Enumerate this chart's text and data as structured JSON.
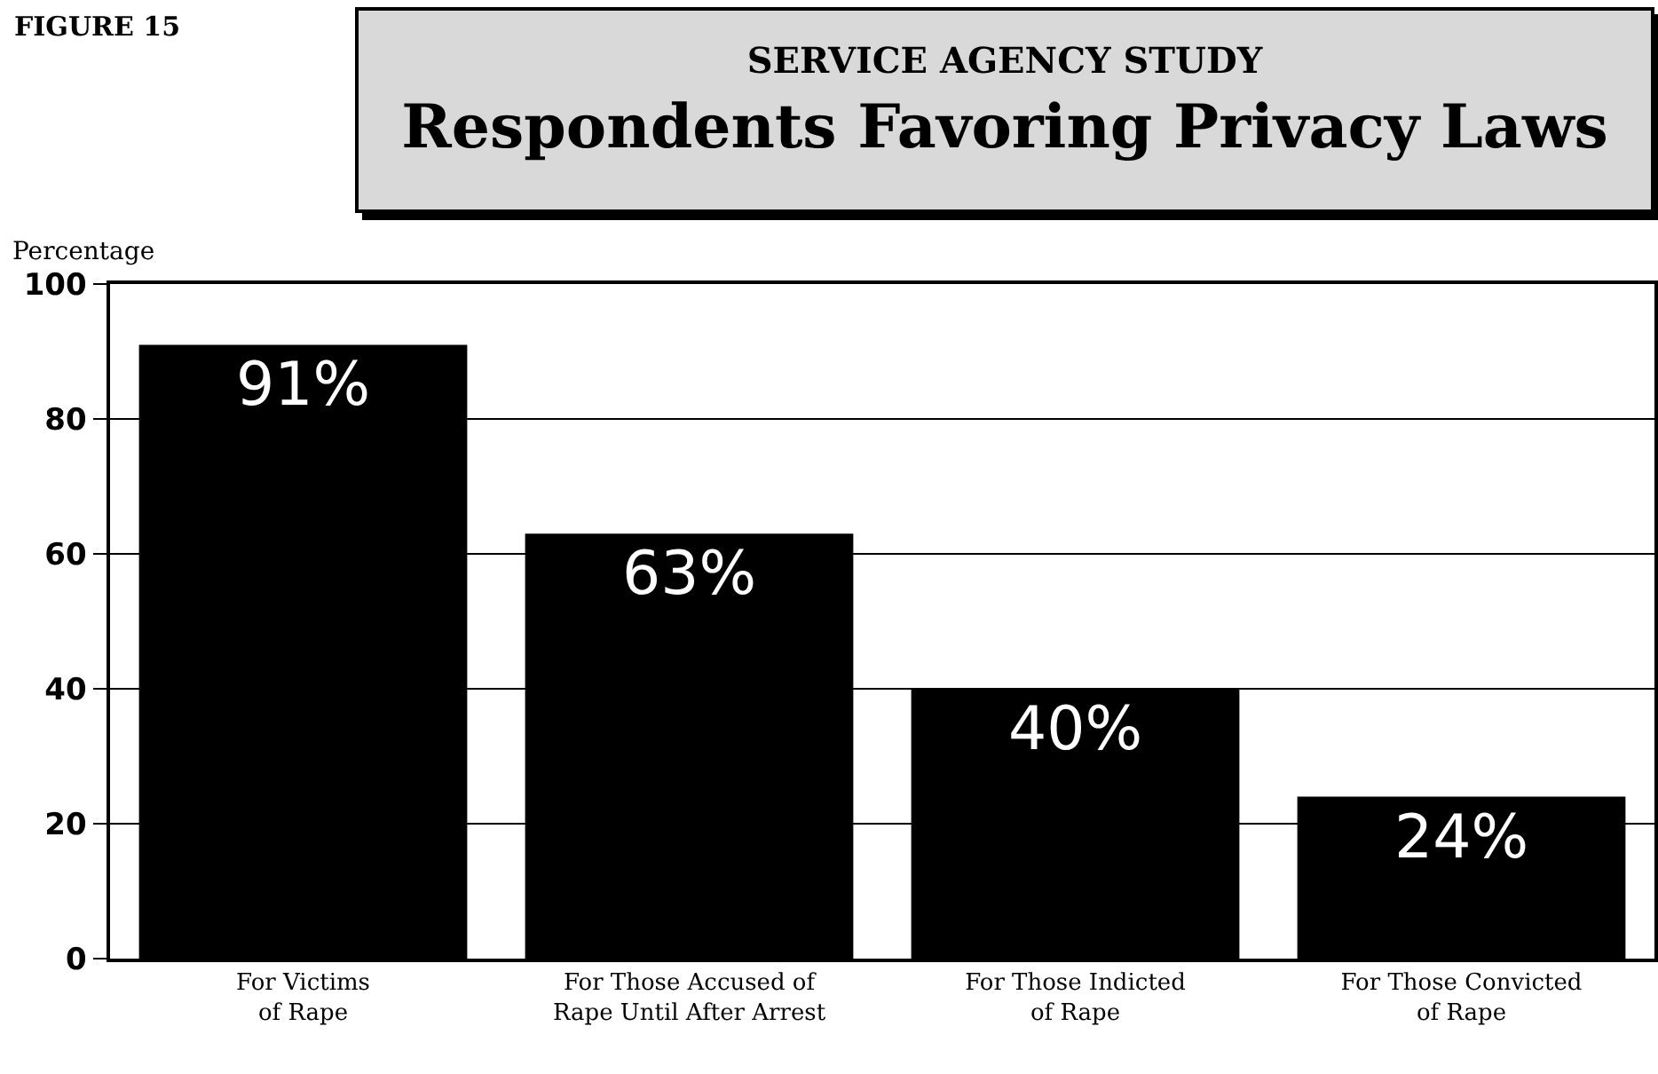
{
  "chart_data": {
    "type": "bar",
    "title": "Respondents Favoring Privacy Laws",
    "subtitle": "SERVICE AGENCY STUDY",
    "annotations": [
      "FIGURE 15"
    ],
    "ylabel": "Percentage",
    "categories": [
      "For Victims of Rape",
      "For Those Accused of Rape Until After Arrest",
      "For Those Indicted of Rape",
      "For Those Convicted of Rape"
    ],
    "values": [
      91,
      63,
      40,
      24
    ],
    "value_labels": [
      "91%",
      "63%",
      "40%",
      "24%"
    ],
    "color": "#000000",
    "ylim": [
      0,
      100
    ],
    "yticks": [
      0,
      20,
      40,
      60,
      80,
      100
    ],
    "grid": "y",
    "legend": false
  }
}
